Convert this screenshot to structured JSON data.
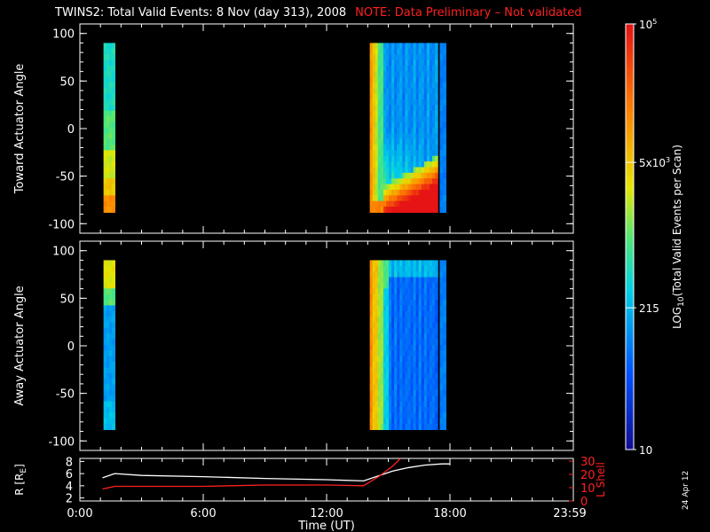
{
  "title": "TWINS2: Total Valid Events:  8 Nov (day 313), 2008",
  "note": "NOTE: Data Preliminary – Not validated",
  "date_stamp": "24 Apr 12",
  "colors": {
    "background": "#000000",
    "axes": "#ffffff",
    "note": "#ff2020",
    "lshell": "#ff2020",
    "radius": "#ffffff"
  },
  "chart_data": [
    {
      "type": "heatmap",
      "ylabel": "Toward Actuator Angle",
      "ylim": [
        -110,
        110
      ],
      "yticks": [
        "100",
        "50",
        "0",
        "-50",
        "-100"
      ],
      "xlim_hours": [
        0,
        24
      ],
      "xticks": [
        "0:00",
        "6:00",
        "12:00",
        "18:00",
        "23:59"
      ],
      "data_angle_range": [
        -88,
        90
      ],
      "blocks": [
        {
          "start_hour": 1.15,
          "end_hour": 1.7,
          "pattern": "low"
        },
        {
          "start_hour": 14.1,
          "end_hour": 17.4,
          "pattern": "pass_toward"
        },
        {
          "start_hour": 17.5,
          "end_hour": 17.8,
          "pattern": "thin"
        }
      ]
    },
    {
      "type": "heatmap",
      "ylabel": "Away Actuator Angle",
      "ylim": [
        -110,
        110
      ],
      "yticks": [
        "100",
        "50",
        "0",
        "-50",
        "-100"
      ],
      "xlim_hours": [
        0,
        24
      ],
      "xticks": [
        "0:00",
        "6:00",
        "12:00",
        "18:00",
        "23:59"
      ],
      "data_angle_range": [
        -88,
        90
      ],
      "blocks": [
        {
          "start_hour": 1.15,
          "end_hour": 1.7,
          "pattern": "low_away"
        },
        {
          "start_hour": 14.1,
          "end_hour": 17.4,
          "pattern": "pass_away"
        },
        {
          "start_hour": 17.5,
          "end_hour": 17.8,
          "pattern": "thin_away"
        }
      ]
    },
    {
      "type": "line",
      "xlabel": "Time (UT)",
      "xticks": [
        "0:00",
        "6:00",
        "12:00",
        "18:00",
        "23:59"
      ],
      "xlim_hours": [
        0,
        24
      ],
      "left_axis": {
        "label": "R [R",
        "label_sub": "E",
        "label_end": "]",
        "ylim": [
          1.5,
          8.5
        ],
        "ticks": [
          "8",
          "6",
          "4",
          "2"
        ]
      },
      "right_axis": {
        "label": "L Shell",
        "ylim": [
          0,
          32
        ],
        "ticks": [
          "30",
          "20",
          "10",
          "0"
        ]
      },
      "series": [
        {
          "axis": "left",
          "color": "#ffffff",
          "x": [
            1.1,
            1.7,
            3.0,
            6.0,
            9.0,
            12.0,
            13.8,
            14.5,
            15.2,
            16.0,
            16.8,
            17.6,
            18.0
          ],
          "y": [
            5.3,
            6.0,
            5.7,
            5.5,
            5.2,
            5.0,
            4.8,
            5.6,
            6.4,
            7.0,
            7.4,
            7.6,
            7.6
          ]
        },
        {
          "axis": "right",
          "color": "#ff2020",
          "x": [
            1.1,
            1.7,
            3.0,
            6.0,
            9.0,
            12.0,
            13.8,
            14.5,
            15.2,
            15.6
          ],
          "y": [
            9.0,
            11.0,
            11.0,
            11.0,
            12.0,
            12.0,
            11.5,
            18.0,
            26.0,
            32.0
          ]
        }
      ]
    }
  ],
  "colorbar": {
    "ylabel": "LOG",
    "ylabel_sub": "10",
    "ylabel_end": "(Total Valid  Events per Scan)",
    "tick_labels": [
      {
        "value": 10,
        "base": "10",
        "exp": ""
      },
      {
        "value": 215,
        "base": "215",
        "exp": ""
      },
      {
        "value": 5000,
        "base": "5x10",
        "exp": "3"
      },
      {
        "value": 100000,
        "base": "10",
        "exp": "5"
      }
    ],
    "range": [
      10,
      100000
    ]
  }
}
